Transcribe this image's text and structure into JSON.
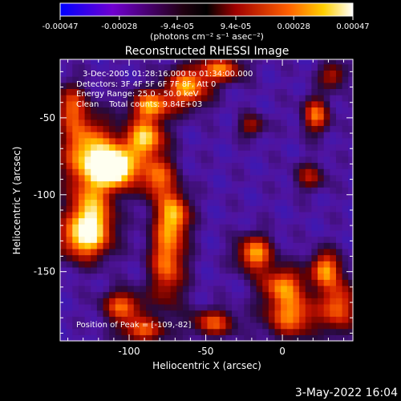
{
  "colorbar": {
    "tick_labels": [
      "-0.00047",
      "-0.00028",
      "-9.4e-05",
      "9.4e-05",
      "0.00028",
      "0.00047"
    ],
    "tick_values": [
      -0.00047,
      -0.00028,
      -9.4e-05,
      9.4e-05,
      0.00028,
      0.00047
    ],
    "range": [
      -0.00047,
      0.00047
    ],
    "units_label": "(photons cm⁻² s⁻¹ asec⁻²)",
    "colors": [
      "#0000ff",
      "#8000c0",
      "#000000",
      "#c00000",
      "#ff8000",
      "#ffff00",
      "#ffffff"
    ]
  },
  "chart_data": {
    "type": "heatmap",
    "title": "Reconstructed RHESSI Image",
    "xlabel": "Heliocentric X (arcsec)",
    "ylabel": "Heliocentric Y (arcsec)",
    "xlim": [
      -145,
      46
    ],
    "ylim": [
      -195,
      -12
    ],
    "xticks": [
      {
        "value": -100,
        "label": "-100"
      },
      {
        "value": -50,
        "label": "-50"
      },
      {
        "value": 0,
        "label": "0"
      }
    ],
    "yticks": [
      {
        "value": -50,
        "label": "-50"
      },
      {
        "value": -100,
        "label": "-100"
      },
      {
        "value": -150,
        "label": "-150"
      }
    ],
    "annotations": [
      "3-Dec-2005 01:28:16.000 to 01:34:00.000",
      "Detectors: 3F 4F 5F 6F 7F 8F, Att 0",
      "Energy Range: 25.0 - 50.0 keV",
      "Clean    Total counts: 9.84E+03",
      "Position of Peak = [-109,-82]"
    ],
    "peak": {
      "x": -109,
      "y": -82
    },
    "sources": [
      {
        "x": -109,
        "y": -82,
        "sx": 10,
        "sy": 9,
        "amp": 1.0
      },
      {
        "x": -127,
        "y": -72,
        "sx": 12,
        "sy": 16,
        "amp": 0.7
      },
      {
        "x": -125,
        "y": -112,
        "sx": 10,
        "sy": 14,
        "amp": 0.65
      },
      {
        "x": -130,
        "y": -128,
        "sx": 12,
        "sy": 10,
        "amp": 0.6
      },
      {
        "x": -90,
        "y": -63,
        "sx": 9,
        "sy": 8,
        "amp": 0.75
      },
      {
        "x": -82,
        "y": -88,
        "sx": 8,
        "sy": 10,
        "amp": 0.55
      },
      {
        "x": -86,
        "y": -42,
        "sx": 9,
        "sy": 7,
        "amp": 0.65
      },
      {
        "x": -62,
        "y": -30,
        "sx": 10,
        "sy": 9,
        "amp": 0.65
      },
      {
        "x": -40,
        "y": -18,
        "sx": 10,
        "sy": 6,
        "amp": 0.55
      },
      {
        "x": -75,
        "y": -140,
        "sx": 8,
        "sy": 22,
        "amp": 0.6
      },
      {
        "x": -70,
        "y": -112,
        "sx": 7,
        "sy": 10,
        "amp": 0.5
      },
      {
        "x": -104,
        "y": -172,
        "sx": 9,
        "sy": 7,
        "amp": 0.55
      },
      {
        "x": -92,
        "y": -188,
        "sx": 10,
        "sy": 6,
        "amp": 0.5
      },
      {
        "x": -18,
        "y": -138,
        "sx": 8,
        "sy": 8,
        "amp": 0.65
      },
      {
        "x": 0,
        "y": -158,
        "sx": 10,
        "sy": 8,
        "amp": 0.55
      },
      {
        "x": 6,
        "y": -178,
        "sx": 12,
        "sy": 10,
        "amp": 0.6
      },
      {
        "x": -45,
        "y": -183,
        "sx": 10,
        "sy": 6,
        "amp": 0.5
      },
      {
        "x": 28,
        "y": -148,
        "sx": 7,
        "sy": 8,
        "amp": 0.6
      },
      {
        "x": 37,
        "y": -172,
        "sx": 8,
        "sy": 12,
        "amp": 0.55
      },
      {
        "x": 22,
        "y": -48,
        "sx": 6,
        "sy": 8,
        "amp": 0.55
      },
      {
        "x": 33,
        "y": -22,
        "sx": 6,
        "sy": 6,
        "amp": 0.4
      },
      {
        "x": -20,
        "y": -55,
        "sx": 6,
        "sy": 5,
        "amp": 0.35
      },
      {
        "x": 18,
        "y": -88,
        "sx": 7,
        "sy": 6,
        "amp": 0.35
      },
      {
        "x": -138,
        "y": -42,
        "sx": 7,
        "sy": 10,
        "amp": 0.45
      }
    ]
  },
  "footer": {
    "timestamp": "3-May-2022 16:04"
  }
}
